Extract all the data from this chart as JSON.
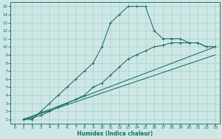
{
  "xlabel": "Humidex (Indice chaleur)",
  "xlim": [
    -0.5,
    23.5
  ],
  "ylim": [
    0.5,
    15.5
  ],
  "xticks": [
    0,
    1,
    2,
    3,
    4,
    5,
    6,
    7,
    8,
    9,
    10,
    11,
    12,
    13,
    14,
    15,
    16,
    17,
    18,
    19,
    20,
    21,
    22,
    23
  ],
  "yticks": [
    1,
    2,
    3,
    4,
    5,
    6,
    7,
    8,
    9,
    10,
    11,
    12,
    13,
    14,
    15
  ],
  "bg_color": "#cde8e4",
  "grid_color": "#a8ccca",
  "line_color": "#1a6b6b",
  "lines": [
    {
      "x": [
        1,
        2,
        3,
        4,
        5,
        6,
        7,
        8,
        9,
        10,
        11,
        12,
        13,
        14,
        15,
        16,
        17,
        18,
        19,
        20,
        21,
        22,
        23
      ],
      "y": [
        1,
        1,
        2,
        3,
        4,
        5,
        6,
        7,
        8,
        10,
        13,
        14,
        15,
        15,
        15,
        12,
        11,
        11,
        11,
        10.5,
        10.5,
        10,
        10
      ],
      "marker": true
    },
    {
      "x": [
        1,
        2,
        3,
        4,
        5,
        6,
        7,
        8,
        9,
        10,
        11,
        12,
        13,
        14,
        15,
        16,
        17,
        18,
        19,
        20,
        21,
        22,
        23
      ],
      "y": [
        1,
        1.2,
        1.5,
        2,
        2.5,
        3,
        3.5,
        4,
        5,
        5.5,
        6.5,
        7.5,
        8.5,
        9,
        9.5,
        10,
        10.2,
        10.5,
        10.5,
        10.5,
        10.5,
        10,
        10
      ],
      "marker": true
    },
    {
      "x": [
        1,
        23
      ],
      "y": [
        1,
        10
      ],
      "marker": false
    },
    {
      "x": [
        1,
        23
      ],
      "y": [
        1,
        9
      ],
      "marker": false
    }
  ]
}
